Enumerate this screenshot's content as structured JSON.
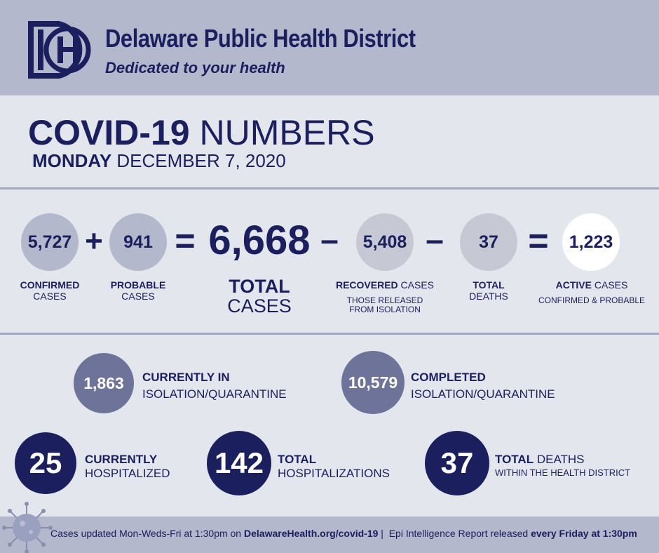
{
  "header": {
    "org_name": "Delaware Public Health District",
    "tagline": "Dedicated to your health"
  },
  "title": {
    "bold": "COVID-19",
    "light": "NUMBERS",
    "day": "MONDAY",
    "date": "DECEMBER 7, 2020"
  },
  "equation": {
    "confirmed": {
      "value": "5,727",
      "line1": "CONFIRMED",
      "line2": "CASES"
    },
    "plus": "+",
    "probable": {
      "value": "941",
      "line1": "PROBABLE",
      "line2": "CASES"
    },
    "equals1": "=",
    "total": {
      "value": "6,668",
      "line1": "TOTAL",
      "line2": "CASES"
    },
    "minus1": "–",
    "recovered": {
      "value": "5,408",
      "bold": "RECOVERED",
      "light": "CASES",
      "sub1": "THOSE RELEASED",
      "sub2": "FROM ISOLATION"
    },
    "minus2": "–",
    "deaths": {
      "value": "37",
      "line1": "TOTAL",
      "line2": "DEATHS"
    },
    "equals2": "=",
    "active": {
      "value": "1,223",
      "bold": "ACTIVE",
      "light": "CASES",
      "sub": "CONFIRMED & PROBABLE"
    }
  },
  "isolation": {
    "current": {
      "value": "1,863",
      "line1": "CURRENTLY IN",
      "line2": "ISOLATION/QUARANTINE"
    },
    "completed": {
      "value": "10,579",
      "line1": "COMPLETED",
      "line2": "ISOLATION/QUARANTINE"
    }
  },
  "hospital": {
    "current": {
      "value": "25",
      "line1": "CURRENTLY",
      "line2": "HOSPITALIZED"
    },
    "total": {
      "value": "142",
      "line1": "TOTAL",
      "line2": "HOSPITALIZATIONS"
    },
    "deaths": {
      "value": "37",
      "bold": "TOTAL",
      "light": "DEATHS",
      "line2": "WITHIN THE HEALTH DISTRICT"
    }
  },
  "footer": {
    "part1": "Cases updated Mon-Weds-Fri at 1:30pm on ",
    "link": "DelawareHealth.org/covid-19",
    "separator": " | ",
    "part2": " Epi Intelligence Report released ",
    "bold_end": "every Friday at 1:30pm"
  },
  "colors": {
    "navy": "#1b1f5e",
    "header_band": "#b4b8cc",
    "background": "#e4e6ee",
    "mid_circle": "#6e7399"
  }
}
